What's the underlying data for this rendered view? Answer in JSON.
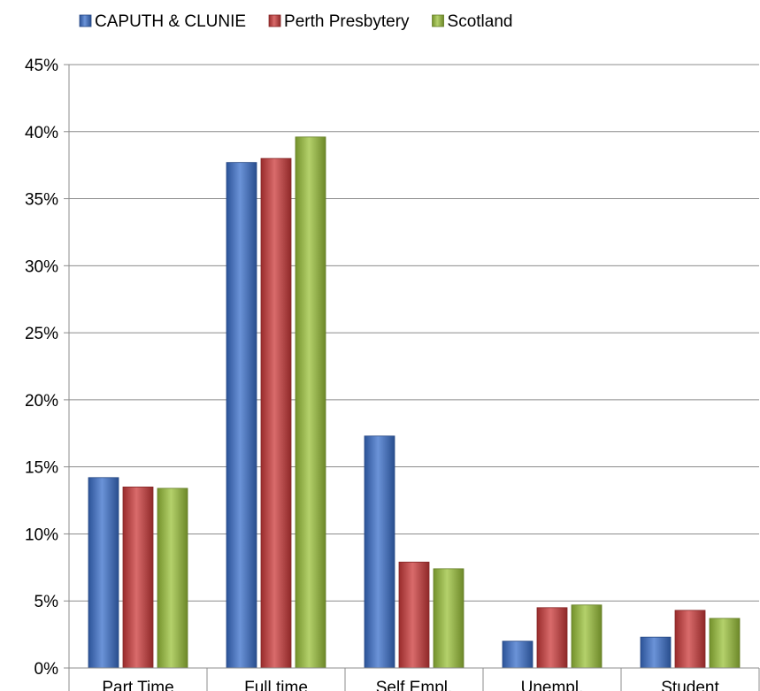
{
  "chart_data": {
    "type": "bar",
    "categories": [
      "Part Time",
      "Full time",
      "Self Empl.",
      "Unempl.",
      "Student"
    ],
    "series": [
      {
        "name": "CAPUTH & CLUNIE",
        "values": [
          14.2,
          37.7,
          17.3,
          2.0,
          2.3
        ],
        "color": "#3a6fcb"
      },
      {
        "name": "Perth Presbytery",
        "values": [
          13.5,
          38.0,
          7.9,
          4.5,
          4.3
        ],
        "color": "#cc3a3a"
      },
      {
        "name": "Scotland",
        "values": [
          13.4,
          39.6,
          7.4,
          4.7,
          3.7
        ],
        "color": "#9bc23a"
      }
    ],
    "yticks": [
      "0%",
      "5%",
      "10%",
      "15%",
      "20%",
      "25%",
      "30%",
      "35%",
      "40%",
      "45%"
    ],
    "ylim": [
      0,
      45
    ],
    "grid": true,
    "legend_position": "top-left"
  }
}
